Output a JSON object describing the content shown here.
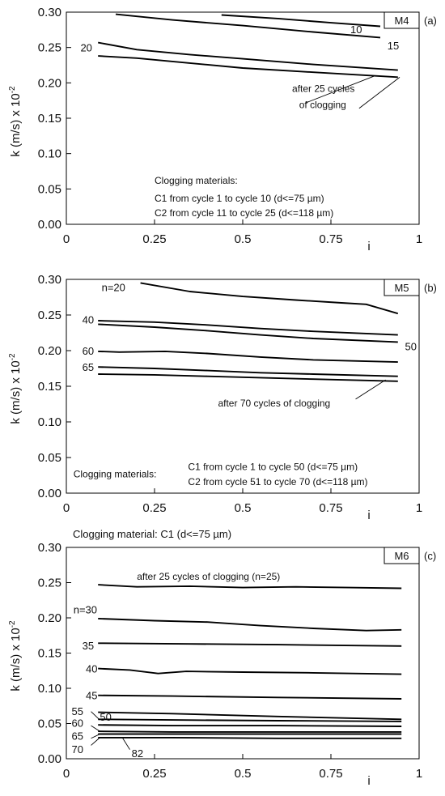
{
  "chart_data": [
    {
      "type": "line",
      "panel_tag": "M4",
      "panel_letter": "(a)",
      "ylabel": "k (m/s) x 10",
      "ylabel_exp": "-2",
      "xlabel": "i",
      "xlim": [
        0,
        1
      ],
      "ylim": [
        0,
        0.3
      ],
      "xticks": [
        "0",
        "0.25",
        "0.5",
        "0.75",
        "1"
      ],
      "yticks": [
        "0.00",
        "0.05",
        "0.10",
        "0.15",
        "0.20",
        "0.25",
        "0.30"
      ],
      "grid": false,
      "series": [
        {
          "name": "10",
          "x": [
            0.44,
            0.6,
            0.75,
            0.89
          ],
          "y": [
            0.296,
            0.291,
            0.285,
            0.28
          ]
        },
        {
          "name": "15",
          "x": [
            0.14,
            0.3,
            0.5,
            0.7,
            0.89
          ],
          "y": [
            0.297,
            0.289,
            0.281,
            0.272,
            0.264
          ]
        },
        {
          "name": "20",
          "x": [
            0.09,
            0.2,
            0.35,
            0.5,
            0.7,
            0.94
          ],
          "y": [
            0.257,
            0.247,
            0.24,
            0.234,
            0.226,
            0.218
          ]
        },
        {
          "name": "25",
          "x": [
            0.09,
            0.2,
            0.35,
            0.5,
            0.7,
            0.94
          ],
          "y": [
            0.238,
            0.235,
            0.228,
            0.221,
            0.215,
            0.208
          ]
        }
      ],
      "annotations": [
        {
          "text": "10",
          "x": 0.805,
          "y": 0.276
        },
        {
          "text": "15",
          "x": 0.91,
          "y": 0.253
        },
        {
          "text": "20",
          "x": 0.04,
          "y": 0.25
        },
        {
          "text": "after 25 cycles",
          "x": 0.64,
          "y": 0.193
        },
        {
          "text": "of clogging",
          "x": 0.66,
          "y": 0.17
        },
        {
          "text": "Clogging materials:",
          "x": 0.25,
          "y": 0.063
        },
        {
          "text": "C1 from cycle 1 to cycle 10 (d<=75  µm)",
          "x": 0.25,
          "y": 0.038
        },
        {
          "text": "C2 from cycle 11 to cycle 25 (d<=118  µm)",
          "x": 0.25,
          "y": 0.017
        }
      ]
    },
    {
      "type": "line",
      "panel_tag": "M5",
      "panel_letter": "(b)",
      "ylabel": "k (m/s) x 10",
      "ylabel_exp": "-2",
      "xlabel": "i",
      "xlim": [
        0,
        1
      ],
      "ylim": [
        0,
        0.3
      ],
      "xticks": [
        "0",
        "0.25",
        "0.5",
        "0.75",
        "1"
      ],
      "yticks": [
        "0.00",
        "0.05",
        "0.10",
        "0.15",
        "0.20",
        "0.25",
        "0.30"
      ],
      "grid": false,
      "series": [
        {
          "name": "n=20",
          "x": [
            0.21,
            0.35,
            0.5,
            0.65,
            0.78,
            0.85,
            0.94
          ],
          "y": [
            0.295,
            0.283,
            0.276,
            0.271,
            0.267,
            0.265,
            0.252
          ]
        },
        {
          "name": "40",
          "x": [
            0.09,
            0.25,
            0.4,
            0.55,
            0.7,
            0.94
          ],
          "y": [
            0.242,
            0.24,
            0.236,
            0.231,
            0.227,
            0.222
          ]
        },
        {
          "name": "50",
          "x": [
            0.09,
            0.25,
            0.4,
            0.55,
            0.7,
            0.94
          ],
          "y": [
            0.237,
            0.233,
            0.228,
            0.222,
            0.217,
            0.212
          ]
        },
        {
          "name": "60",
          "x": [
            0.09,
            0.15,
            0.28,
            0.4,
            0.55,
            0.7,
            0.94
          ],
          "y": [
            0.199,
            0.198,
            0.199,
            0.196,
            0.191,
            0.187,
            0.184
          ]
        },
        {
          "name": "65",
          "x": [
            0.09,
            0.25,
            0.4,
            0.55,
            0.7,
            0.94
          ],
          "y": [
            0.177,
            0.175,
            0.172,
            0.169,
            0.167,
            0.164
          ]
        },
        {
          "name": "70",
          "x": [
            0.09,
            0.25,
            0.4,
            0.55,
            0.7,
            0.94
          ],
          "y": [
            0.167,
            0.166,
            0.164,
            0.162,
            0.16,
            0.157
          ]
        }
      ],
      "annotations": [
        {
          "text": "n=20",
          "x": 0.1,
          "y": 0.289
        },
        {
          "text": "40",
          "x": 0.045,
          "y": 0.244
        },
        {
          "text": "50",
          "x": 0.96,
          "y": 0.206
        },
        {
          "text": "60",
          "x": 0.045,
          "y": 0.2
        },
        {
          "text": "65",
          "x": 0.045,
          "y": 0.177
        },
        {
          "text": "after 70 cycles of clogging",
          "x": 0.43,
          "y": 0.127
        },
        {
          "text": "Clogging materials:",
          "x": 0.02,
          "y": 0.028
        },
        {
          "text": "C1 from cycle 1 to cycle 50 (d<=75  µm)",
          "x": 0.345,
          "y": 0.038
        },
        {
          "text": "C2 from cycle 51 to cycle 70 (d<=118  µm)",
          "x": 0.345,
          "y": 0.017
        }
      ]
    },
    {
      "type": "line",
      "panel_tag": "M6",
      "panel_letter": "(c)",
      "title": "Clogging material: C1 (d<=75 µm)",
      "ylabel": "k (m/s) x 10",
      "ylabel_exp": "-2",
      "xlabel": "i",
      "xlim": [
        0,
        1
      ],
      "ylim": [
        0,
        0.3
      ],
      "xticks": [
        "0",
        "0.25",
        "0.5",
        "0.75",
        "1"
      ],
      "yticks": [
        "0.00",
        "0.05",
        "0.10",
        "0.15",
        "0.20",
        "0.25",
        "0.30"
      ],
      "grid": false,
      "series": [
        {
          "name": "25",
          "x": [
            0.09,
            0.2,
            0.35,
            0.5,
            0.65,
            0.8,
            0.95
          ],
          "y": [
            0.247,
            0.244,
            0.245,
            0.243,
            0.244,
            0.243,
            0.242
          ]
        },
        {
          "name": "n=30",
          "x": [
            0.09,
            0.25,
            0.4,
            0.55,
            0.7,
            0.85,
            0.95
          ],
          "y": [
            0.199,
            0.196,
            0.194,
            0.189,
            0.185,
            0.182,
            0.183
          ]
        },
        {
          "name": "35",
          "x": [
            0.09,
            0.35,
            0.6,
            0.95
          ],
          "y": [
            0.164,
            0.163,
            0.162,
            0.16
          ]
        },
        {
          "name": "40",
          "x": [
            0.09,
            0.18,
            0.26,
            0.34,
            0.5,
            0.7,
            0.95
          ],
          "y": [
            0.128,
            0.126,
            0.121,
            0.124,
            0.123,
            0.122,
            0.12
          ]
        },
        {
          "name": "45",
          "x": [
            0.09,
            0.3,
            0.6,
            0.95
          ],
          "y": [
            0.09,
            0.089,
            0.087,
            0.085
          ]
        },
        {
          "name": "50",
          "x": [
            0.09,
            0.3,
            0.6,
            0.95
          ],
          "y": [
            0.066,
            0.064,
            0.06,
            0.056
          ]
        },
        {
          "name": "55",
          "x": [
            0.09,
            0.3,
            0.6,
            0.95
          ],
          "y": [
            0.056,
            0.055,
            0.054,
            0.053
          ]
        },
        {
          "name": "60",
          "x": [
            0.09,
            0.3,
            0.6,
            0.95
          ],
          "y": [
            0.048,
            0.047,
            0.047,
            0.046
          ]
        },
        {
          "name": "65",
          "x": [
            0.09,
            0.3,
            0.6,
            0.95
          ],
          "y": [
            0.039,
            0.038,
            0.038,
            0.038
          ]
        },
        {
          "name": "70",
          "x": [
            0.09,
            0.3,
            0.6,
            0.95
          ],
          "y": [
            0.035,
            0.035,
            0.035,
            0.035
          ]
        },
        {
          "name": "82",
          "x": [
            0.09,
            0.3,
            0.6,
            0.95
          ],
          "y": [
            0.03,
            0.03,
            0.029,
            0.029
          ]
        }
      ],
      "annotations": [
        {
          "text": "after 25 cycles of clogging (n=25)",
          "x": 0.2,
          "y": 0.26
        },
        {
          "text": "n=30",
          "x": 0.02,
          "y": 0.212
        },
        {
          "text": "35",
          "x": 0.045,
          "y": 0.161
        },
        {
          "text": "40",
          "x": 0.055,
          "y": 0.128
        },
        {
          "text": "45",
          "x": 0.055,
          "y": 0.09
        },
        {
          "text": "55",
          "x": 0.015,
          "y": 0.068
        },
        {
          "text": "50",
          "x": 0.095,
          "y": 0.06
        },
        {
          "text": "60",
          "x": 0.015,
          "y": 0.051
        },
        {
          "text": "65",
          "x": 0.015,
          "y": 0.033
        },
        {
          "text": "70",
          "x": 0.015,
          "y": 0.014
        },
        {
          "text": "82",
          "x": 0.185,
          "y": 0.008
        }
      ]
    }
  ]
}
